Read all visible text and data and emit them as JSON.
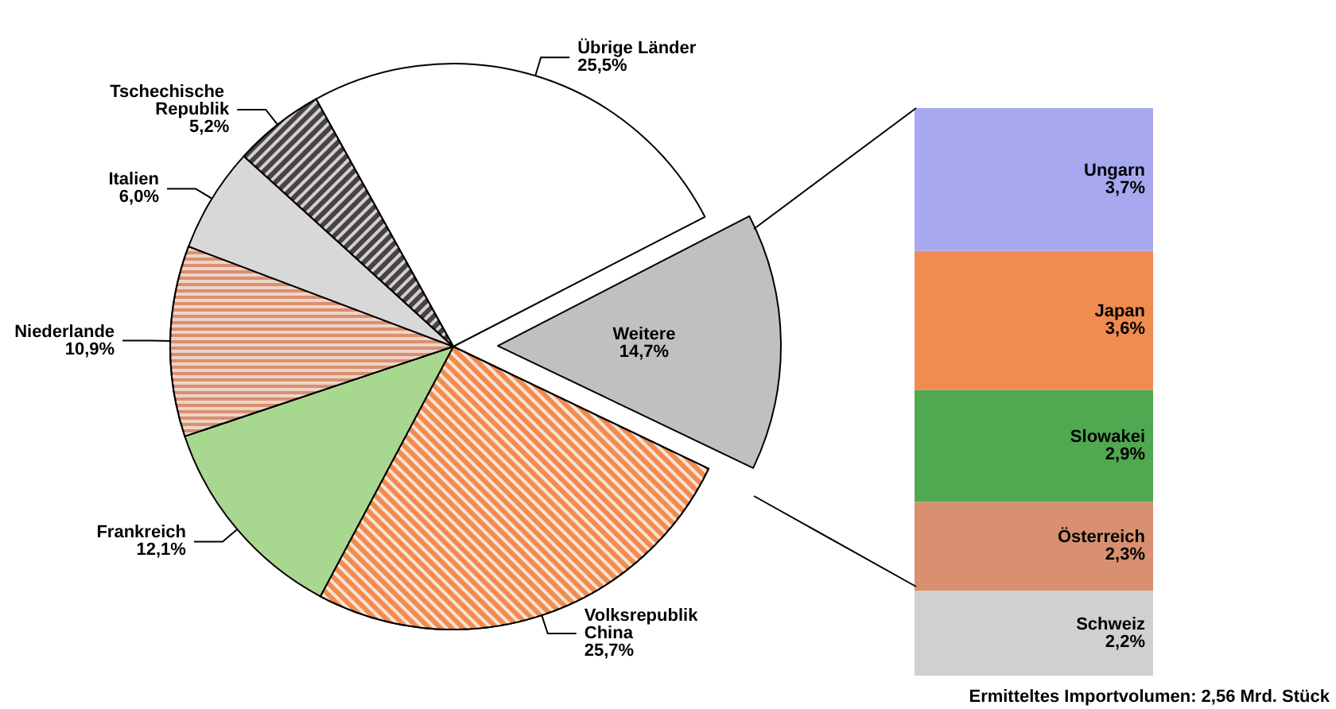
{
  "chart_data": [
    {
      "type": "pie",
      "categories": [
        "Übrige Länder",
        "Weitere",
        "Volksrepublik China",
        "Frankreich",
        "Niederlande",
        "Italien",
        "Tschechische Republik"
      ],
      "values": [
        25.5,
        14.7,
        25.7,
        12.1,
        10.9,
        6.0,
        5.2
      ],
      "colors": [
        "#ffffff",
        "#c0c0c0",
        "#f08c50",
        "#a8d890",
        "#d89070",
        "#d8d8d8",
        "#4a4242"
      ],
      "value_labels": [
        "25,5%",
        "14,7%",
        "25,7%",
        "12,1%",
        "10,9%",
        "6,0%",
        "5,2%"
      ],
      "legend": false
    },
    {
      "type": "bar",
      "stacked": true,
      "categories": [
        null
      ],
      "tick_labels": false,
      "legend": false,
      "series": [
        {
          "name": "Schweiz",
          "color": "#d0d0d0",
          "values": [
            2.2
          ],
          "value_labels": [
            "2,2%"
          ]
        },
        {
          "name": "Österreich",
          "color": "#d89070",
          "values": [
            2.3
          ],
          "value_labels": [
            "2,3%"
          ]
        },
        {
          "name": "Slowakei",
          "color": "#50a850",
          "values": [
            2.9
          ],
          "value_labels": [
            "2,9%"
          ]
        },
        {
          "name": "Japan",
          "color": "#f08c50",
          "values": [
            3.6
          ],
          "value_labels": [
            "3,6%"
          ]
        },
        {
          "name": "Ungarn",
          "color": "#a8a8f0",
          "values": [
            3.7
          ],
          "value_labels": [
            "3,7%"
          ]
        }
      ],
      "annotations": [
        "Ermitteltes Importvolumen: 2,56 Mrd. Stück"
      ]
    }
  ]
}
